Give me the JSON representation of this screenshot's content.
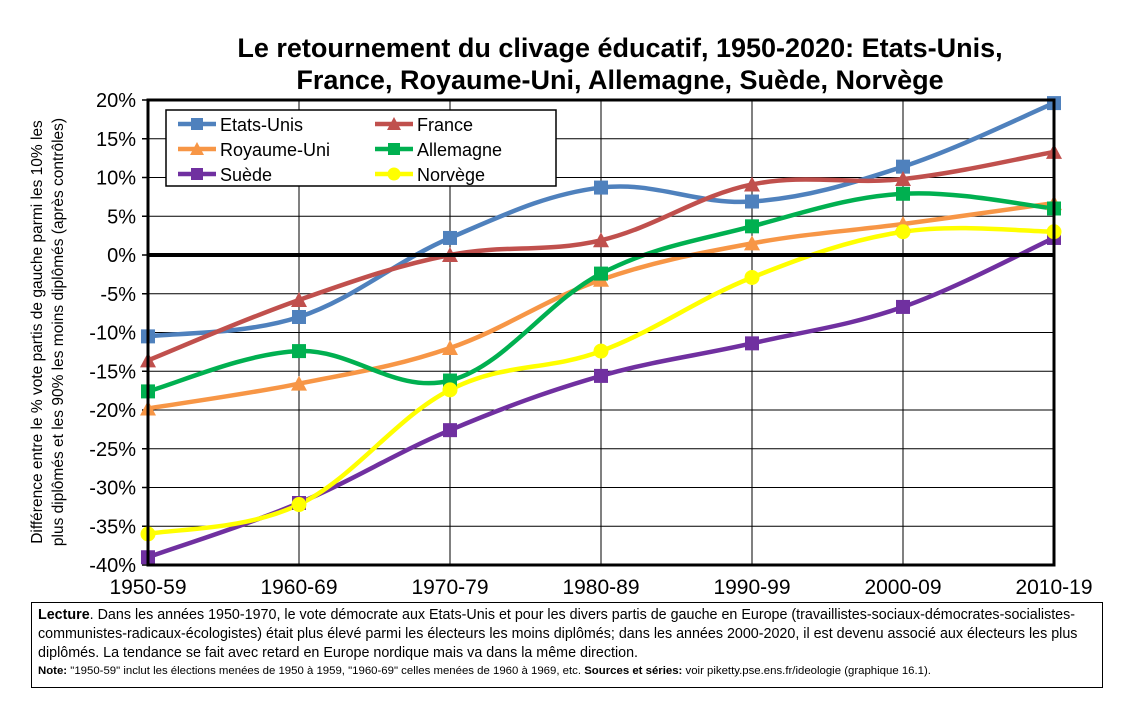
{
  "chart_data": {
    "type": "line",
    "title_line1": "Le retournement du clivage éducatif, 1950-2020: Etats-Unis,",
    "title_line2": "France, Royaume-Uni, Allemagne, Suède, Norvège",
    "ylabel_line1": "Différence entre le % vote partis de gauche parmi les 10% les",
    "ylabel_line2": "plus diplômés et les 90% les moins diplômés (après contrôles)",
    "categories": [
      "1950-59",
      "1960-69",
      "1970-79",
      "1980-89",
      "1990-99",
      "2000-09",
      "2010-19"
    ],
    "ylim": [
      -40,
      20
    ],
    "yticks": [
      {
        "value": 20,
        "label": "20%"
      },
      {
        "value": 15,
        "label": "15%"
      },
      {
        "value": 10,
        "label": "10%"
      },
      {
        "value": 5,
        "label": "5%"
      },
      {
        "value": 0,
        "label": "0%"
      },
      {
        "value": -5,
        "label": "-5%"
      },
      {
        "value": -10,
        "label": "-10%"
      },
      {
        "value": -15,
        "label": "-15%"
      },
      {
        "value": -20,
        "label": "-20%"
      },
      {
        "value": -25,
        "label": "-25%"
      },
      {
        "value": -30,
        "label": "-30%"
      },
      {
        "value": -35,
        "label": "-35%"
      },
      {
        "value": -40,
        "label": "-40%"
      }
    ],
    "grid": true,
    "legend_position": "top-left",
    "series": [
      {
        "name": "Etats-Unis",
        "color": "#4f81bd",
        "marker": "square",
        "values": [
          -10.5,
          -8,
          2.2,
          8.7,
          6.9,
          11.4,
          19.6
        ]
      },
      {
        "name": "France",
        "color": "#c0504d",
        "marker": "triangle",
        "values": [
          -13.6,
          -5.8,
          0,
          1.9,
          9.1,
          9.8,
          13.3
        ]
      },
      {
        "name": "Royaume-Uni",
        "color": "#f79646",
        "marker": "triangle",
        "values": [
          -19.8,
          -16.6,
          -12,
          -3.2,
          1.5,
          4,
          6.7
        ]
      },
      {
        "name": "Allemagne",
        "color": "#00b050",
        "marker": "square",
        "values": [
          -17.6,
          -12.4,
          -16.2,
          -2.4,
          3.7,
          7.9,
          6
        ]
      },
      {
        "name": "Suède",
        "color": "#7030a0",
        "marker": "square",
        "values": [
          -39,
          -32,
          -22.6,
          -15.6,
          -11.4,
          -6.7,
          2.2
        ]
      },
      {
        "name": "Norvège",
        "color": "#ffff00",
        "marker": "circle",
        "values": [
          -36,
          -32.2,
          -17.4,
          -12.4,
          -2.9,
          3,
          3
        ]
      }
    ]
  },
  "notes": {
    "lecture_label": "Lecture",
    "lecture_text": ". Dans les années 1950-1970, le vote démocrate aux Etats-Unis et pour les divers partis de gauche en Europe (travaillistes-sociaux-démocrates-socialistes-communistes-radicaux-écologistes) était plus élevé parmi les électeurs les moins diplômés; dans les années 2000-2020, il est devenu associé aux électeurs les plus diplômés. La tendance se fait avec retard en Europe nordique mais va dans la même direction.",
    "note_label": "Note:",
    "note_text": " \"1950-59\" inclut les élections menées de 1950 à 1959, \"1960-69\" celles menées de 1960 à 1969, etc.",
    "sources_label": "Sources et séries:",
    "sources_text": " voir piketty.pse.ens.fr/ideologie (graphique 16.1)."
  }
}
